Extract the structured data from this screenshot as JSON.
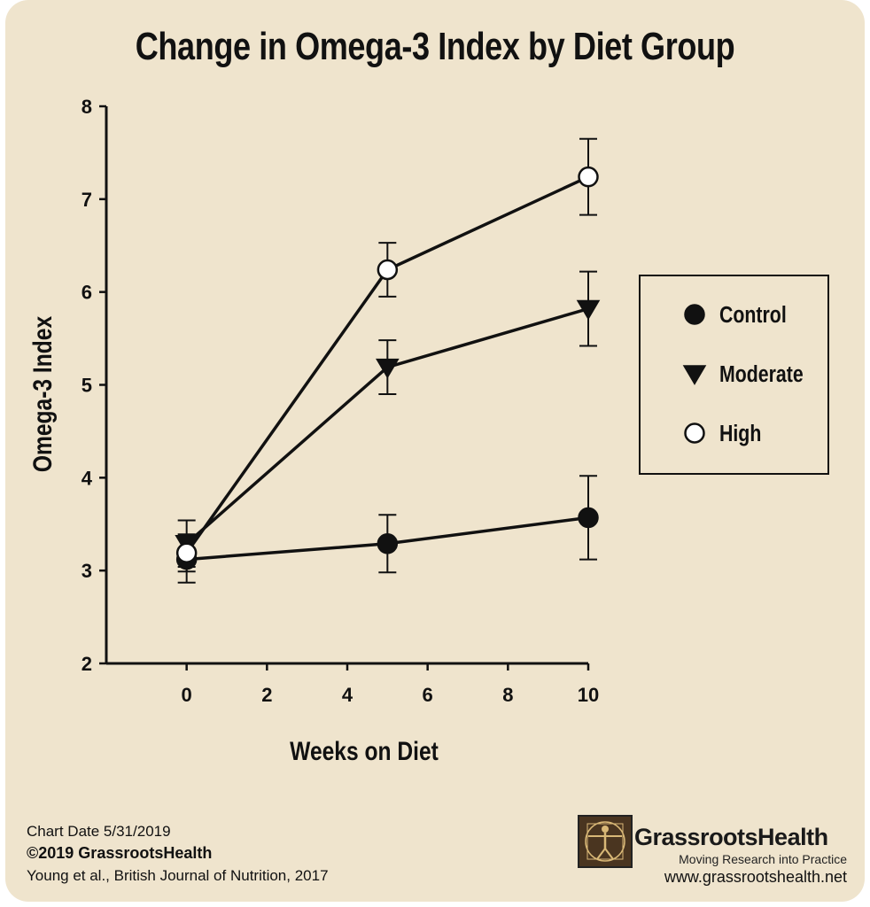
{
  "chart_data": {
    "type": "line",
    "title": "Change in Omega-3 Index by Diet Group",
    "xlabel": "Weeks on Diet",
    "ylabel": "Omega-3 Index",
    "xlim": [
      -2,
      10
    ],
    "ylim": [
      2,
      8
    ],
    "xticks": [
      0,
      2,
      4,
      6,
      8,
      10
    ],
    "yticks": [
      2,
      3,
      4,
      5,
      6,
      7,
      8
    ],
    "grid": false,
    "legend_position": "right",
    "series": [
      {
        "name": "Control",
        "marker": "filled-circle",
        "x": [
          0,
          5,
          10
        ],
        "y": [
          3.12,
          3.29,
          3.57
        ],
        "error": [
          0.25,
          0.31,
          0.45
        ]
      },
      {
        "name": "Moderate",
        "marker": "filled-triangle-down",
        "x": [
          0,
          5,
          10
        ],
        "y": [
          3.29,
          5.19,
          5.82
        ],
        "error": [
          0.25,
          0.29,
          0.4
        ]
      },
      {
        "name": "High",
        "marker": "open-circle",
        "x": [
          0,
          5,
          10
        ],
        "y": [
          3.19,
          6.24,
          7.24
        ],
        "error": [
          0.2,
          0.29,
          0.41
        ]
      }
    ]
  },
  "footer": {
    "chart_date": "Chart Date 5/31/2019",
    "copyright": "©2019 GrassrootsHealth",
    "source": "Young et al., British Journal of Nutrition, 2017",
    "brand": "GrassrootsHealth",
    "tagline": "Moving Research into Practice",
    "url": "www.grassrootshealth.net"
  },
  "colors": {
    "background": "#efe4cd",
    "ink": "#111111"
  }
}
